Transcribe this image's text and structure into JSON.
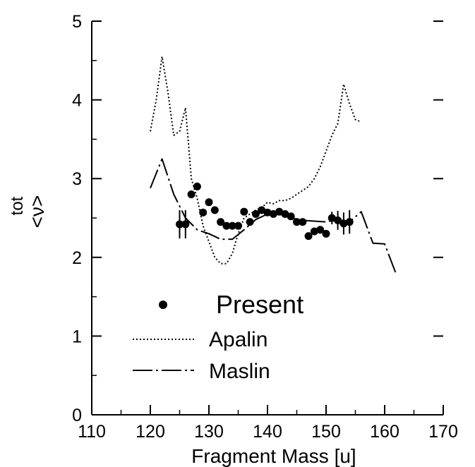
{
  "chart_data": {
    "type": "line",
    "title": "",
    "xlabel": "Fragment Mass [u]",
    "ylabel": "<ν^tot>",
    "ylabel_base": "<ν>",
    "ylabel_sup": "tot",
    "xlim": [
      110,
      170
    ],
    "ylim": [
      0,
      5
    ],
    "xticks": [
      110,
      120,
      130,
      140,
      150,
      160,
      170
    ],
    "yticks": [
      0,
      1,
      2,
      3,
      4,
      5
    ],
    "grid": false,
    "legend_position": "lower-left",
    "series": [
      {
        "name": "Present",
        "style": "points-with-errorbars",
        "color": "#000000",
        "points": [
          {
            "x": 125,
            "y": 2.42,
            "err": 0.18
          },
          {
            "x": 126,
            "y": 2.42,
            "err": 0.18
          },
          {
            "x": 127,
            "y": 2.8,
            "err": 0.05
          },
          {
            "x": 128,
            "y": 2.9,
            "err": 0.05
          },
          {
            "x": 129,
            "y": 2.57,
            "err": 0.04
          },
          {
            "x": 130,
            "y": 2.7,
            "err": 0.04
          },
          {
            "x": 131,
            "y": 2.6,
            "err": 0.04
          },
          {
            "x": 132,
            "y": 2.45,
            "err": 0.04
          },
          {
            "x": 133,
            "y": 2.4,
            "err": 0.04
          },
          {
            "x": 134,
            "y": 2.4,
            "err": 0.04
          },
          {
            "x": 135,
            "y": 2.4,
            "err": 0.04
          },
          {
            "x": 136,
            "y": 2.58,
            "err": 0.04
          },
          {
            "x": 137,
            "y": 2.45,
            "err": 0.04
          },
          {
            "x": 138,
            "y": 2.55,
            "err": 0.04
          },
          {
            "x": 139,
            "y": 2.6,
            "err": 0.04
          },
          {
            "x": 140,
            "y": 2.57,
            "err": 0.04
          },
          {
            "x": 141,
            "y": 2.55,
            "err": 0.04
          },
          {
            "x": 142,
            "y": 2.58,
            "err": 0.04
          },
          {
            "x": 143,
            "y": 2.55,
            "err": 0.04
          },
          {
            "x": 144,
            "y": 2.52,
            "err": 0.04
          },
          {
            "x": 145,
            "y": 2.45,
            "err": 0.04
          },
          {
            "x": 146,
            "y": 2.45,
            "err": 0.04
          },
          {
            "x": 147,
            "y": 2.27,
            "err": 0.04
          },
          {
            "x": 148,
            "y": 2.33,
            "err": 0.04
          },
          {
            "x": 149,
            "y": 2.35,
            "err": 0.04
          },
          {
            "x": 150,
            "y": 2.3,
            "err": 0.04
          },
          {
            "x": 151,
            "y": 2.5,
            "err": 0.08
          },
          {
            "x": 152,
            "y": 2.47,
            "err": 0.12
          },
          {
            "x": 153,
            "y": 2.43,
            "err": 0.14
          },
          {
            "x": 154,
            "y": 2.45,
            "err": 0.15
          }
        ]
      },
      {
        "name": "Apalin",
        "style": "dotted-line",
        "color": "#000000",
        "x": [
          120,
          121,
          122,
          123,
          124,
          125,
          126,
          127,
          128,
          129,
          130,
          131,
          132,
          133,
          134,
          135,
          136,
          137,
          138,
          139,
          140,
          141,
          142,
          143,
          144,
          145,
          146,
          147,
          148,
          149,
          150,
          151,
          152,
          153,
          154,
          155,
          156
        ],
        "y": [
          3.6,
          4.0,
          4.55,
          4.1,
          3.55,
          3.6,
          3.9,
          3.0,
          2.75,
          2.4,
          2.2,
          2.0,
          1.92,
          1.92,
          2.05,
          2.3,
          2.5,
          2.55,
          2.6,
          2.63,
          2.7,
          2.68,
          2.72,
          2.72,
          2.75,
          2.8,
          2.85,
          2.9,
          3.0,
          3.15,
          3.35,
          3.55,
          3.7,
          4.2,
          3.95,
          3.75,
          3.72
        ]
      },
      {
        "name": "Maslin",
        "style": "dash-dot-line",
        "color": "#000000",
        "x": [
          120,
          122,
          124,
          126,
          128,
          130,
          132,
          134,
          136,
          138,
          140,
          142,
          144,
          146,
          148,
          150,
          152,
          154,
          156,
          158,
          160,
          162
        ],
        "y": [
          2.88,
          3.25,
          2.8,
          2.5,
          2.35,
          2.3,
          2.23,
          2.23,
          2.35,
          2.48,
          2.55,
          2.55,
          2.5,
          2.47,
          2.46,
          2.45,
          2.48,
          2.45,
          2.58,
          2.18,
          2.17,
          1.78
        ]
      }
    ]
  }
}
